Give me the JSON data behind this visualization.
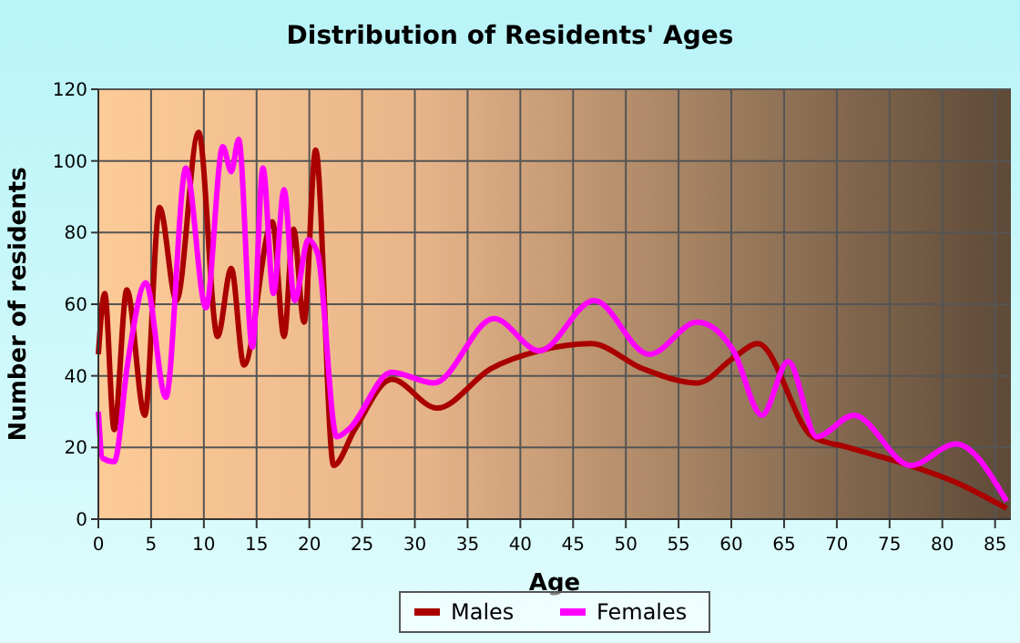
{
  "chart_data": {
    "type": "line",
    "title": "Distribution of Residents' Ages",
    "xlabel": "Age",
    "ylabel": "Number of residents",
    "xlim": [
      0,
      86.5
    ],
    "ylim": [
      0,
      120
    ],
    "xticks": [
      0,
      5,
      10,
      15,
      20,
      25,
      30,
      35,
      40,
      45,
      50,
      55,
      60,
      65,
      70,
      75,
      80,
      85
    ],
    "yticks": [
      0,
      20,
      40,
      60,
      80,
      100,
      120
    ],
    "grid": true,
    "legend": "bottom",
    "marker": "none",
    "line_style": "solid",
    "series": [
      {
        "name": "Males",
        "color": "#aa0000",
        "x": [
          0,
          0.6,
          1.5,
          2.7,
          4.4,
          5.8,
          7.4,
          9.5,
          11.3,
          12.6,
          13.8,
          16.5,
          17.6,
          18.5,
          19.5,
          20.6,
          22.3,
          24.3,
          27.8,
          32.1,
          37.2,
          41.8,
          46.7,
          51.6,
          56.8,
          60.2,
          62.5,
          67.7,
          71.1,
          76.9,
          81.5,
          86.1
        ],
        "values": [
          46,
          63,
          25,
          64,
          29,
          87,
          61,
          108,
          51,
          70,
          43,
          83,
          51,
          81,
          55,
          103,
          15,
          25,
          39,
          31,
          42,
          47,
          49,
          42,
          38,
          45,
          49,
          23,
          20,
          15,
          10,
          3
        ]
      },
      {
        "name": "Females",
        "color": "#ff00ff",
        "x": [
          0,
          0.4,
          1.5,
          2.8,
          4.5,
          6.4,
          8.3,
          10.2,
          11.8,
          12.6,
          13.3,
          14.6,
          15.6,
          16.6,
          17.6,
          18.6,
          19.9,
          20.8,
          22.6,
          23.7,
          27.8,
          31.8,
          37.5,
          41.8,
          47,
          52.2,
          56.8,
          60.2,
          62.9,
          65.4,
          68.1,
          71.6,
          77,
          81.3,
          86.1
        ],
        "values": [
          30,
          17,
          16,
          44,
          66,
          34,
          98,
          59,
          104,
          97,
          106,
          48,
          98,
          63,
          92,
          61,
          78,
          74,
          23,
          25,
          41,
          38,
          56,
          47,
          61,
          46,
          55,
          47,
          29,
          44,
          23,
          29,
          15,
          21,
          5
        ]
      }
    ]
  }
}
